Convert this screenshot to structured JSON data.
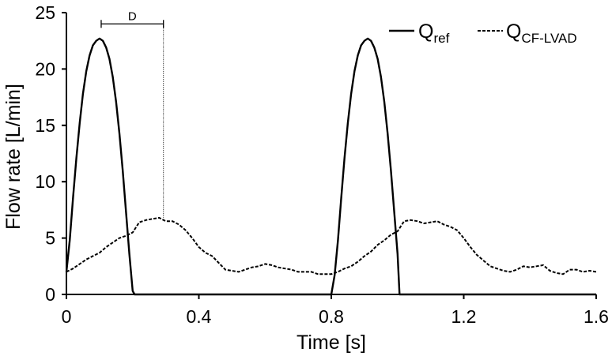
{
  "chart_data": {
    "type": "line",
    "xlabel": "Time [s]",
    "ylabel": "Flow rate [L/min]",
    "xlim": [
      0,
      1.6
    ],
    "ylim": [
      0,
      25
    ],
    "xticks": [
      "0",
      "0.4",
      "0.8",
      "1.2",
      "1.6"
    ],
    "yticks": [
      "0",
      "5",
      "10",
      "15",
      "20",
      "25"
    ],
    "grid": false,
    "legend_position": "top-right",
    "series": [
      {
        "name_main": "Q",
        "name_sub": "ref",
        "style": "solid",
        "color": "#000000",
        "x": [
          0,
          0.01,
          0.02,
          0.03,
          0.04,
          0.05,
          0.06,
          0.07,
          0.08,
          0.09,
          0.1,
          0.11,
          0.12,
          0.13,
          0.14,
          0.15,
          0.16,
          0.17,
          0.18,
          0.19,
          0.2,
          0.206,
          0.3,
          0.4,
          0.5,
          0.6,
          0.7,
          0.8,
          0.81,
          0.82,
          0.83,
          0.84,
          0.85,
          0.86,
          0.87,
          0.88,
          0.89,
          0.9,
          0.91,
          0.92,
          0.93,
          0.94,
          0.95,
          0.96,
          0.97,
          0.98,
          0.99,
          1.0,
          1.006,
          1.1,
          1.2,
          1.3,
          1.4,
          1.5,
          1.6
        ],
        "y": [
          2.0,
          4.8,
          8.6,
          12.1,
          15.2,
          17.8,
          19.8,
          21.2,
          22.1,
          22.5,
          22.7,
          22.5,
          21.9,
          20.9,
          19.3,
          17.1,
          14.3,
          11.0,
          7.3,
          3.6,
          0.3,
          0,
          0,
          0,
          0,
          0,
          0,
          0,
          1.7,
          4.8,
          8.6,
          12.1,
          15.2,
          17.8,
          19.8,
          21.2,
          22.1,
          22.5,
          22.7,
          22.5,
          21.9,
          20.9,
          19.3,
          17.1,
          14.3,
          11.0,
          7.3,
          3.6,
          0,
          0,
          0,
          0,
          0,
          0,
          0
        ]
      },
      {
        "name_main": "Q",
        "name_sub": "CF-LVAD",
        "style": "dashed",
        "color": "#000000",
        "x": [
          0,
          0.02,
          0.04,
          0.06,
          0.08,
          0.1,
          0.12,
          0.14,
          0.16,
          0.18,
          0.2,
          0.22,
          0.24,
          0.26,
          0.28,
          0.3,
          0.32,
          0.34,
          0.36,
          0.38,
          0.4,
          0.42,
          0.44,
          0.46,
          0.48,
          0.5,
          0.52,
          0.54,
          0.56,
          0.58,
          0.6,
          0.62,
          0.64,
          0.66,
          0.68,
          0.7,
          0.72,
          0.74,
          0.76,
          0.78,
          0.8,
          0.82,
          0.84,
          0.86,
          0.88,
          0.9,
          0.92,
          0.94,
          0.96,
          0.98,
          1.0,
          1.02,
          1.04,
          1.06,
          1.08,
          1.1,
          1.12,
          1.14,
          1.16,
          1.18,
          1.2,
          1.22,
          1.24,
          1.26,
          1.28,
          1.3,
          1.32,
          1.34,
          1.36,
          1.38,
          1.4,
          1.42,
          1.44,
          1.46,
          1.48,
          1.5,
          1.52,
          1.54,
          1.56,
          1.58,
          1.6
        ],
        "y": [
          2.0,
          2.3,
          2.7,
          3.1,
          3.4,
          3.7,
          4.2,
          4.6,
          5.0,
          5.2,
          5.5,
          6.4,
          6.6,
          6.7,
          6.8,
          6.5,
          6.5,
          6.2,
          5.7,
          5.0,
          4.2,
          3.7,
          3.4,
          2.8,
          2.2,
          2.1,
          2.0,
          2.2,
          2.4,
          2.5,
          2.7,
          2.6,
          2.4,
          2.3,
          2.2,
          2.0,
          2.0,
          2.0,
          1.8,
          1.8,
          1.8,
          2.0,
          2.3,
          2.5,
          2.9,
          3.4,
          3.8,
          4.4,
          4.8,
          5.3,
          5.6,
          6.5,
          6.6,
          6.5,
          6.3,
          6.4,
          6.5,
          6.2,
          6.0,
          5.7,
          5.0,
          4.2,
          3.5,
          3.0,
          2.5,
          2.3,
          2.1,
          2.0,
          2.2,
          2.5,
          2.4,
          2.5,
          2.6,
          2.1,
          1.9,
          1.8,
          2.2,
          2.2,
          2.0,
          2.1,
          2.0
        ]
      }
    ],
    "annotation": {
      "label": "D",
      "x_start": 0.105,
      "x_end": 0.293,
      "y": 24.0,
      "drop_to_y": 6.8
    }
  }
}
